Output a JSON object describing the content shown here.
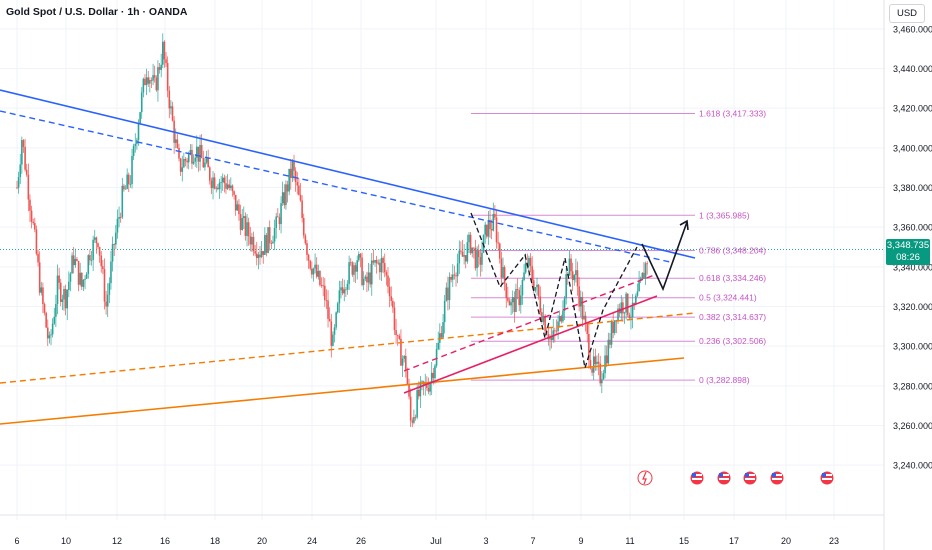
{
  "header": {
    "title": "Gold Spot / U.S. Dollar · 1h · OANDA",
    "currency": "USD",
    "last_price": "3,348.735",
    "countdown": "08:26"
  },
  "colors": {
    "trend_blue": "#2962ff",
    "orange": "#f57c00",
    "pink_red": "#e91e63",
    "magenta": "#c653c6",
    "fib_line": "#d68ad6",
    "candle": "#26a69a",
    "candle_down": "#ef5350",
    "price_tag": "#089981",
    "grid": "#f0f3fa",
    "axis_text": "#131722"
  },
  "icons": [
    "lightning-event-icon",
    "us-flag-event-icon",
    "us-flag-event-icon",
    "us-flag-event-icon",
    "us-flag-event-icon",
    "us-flag-event-icon"
  ],
  "chart_data": {
    "type": "candlestick",
    "symbol": "XAUUSD",
    "timeframe": "1h",
    "ylim": [
      3230,
      3470
    ],
    "y_ticks": [
      3240,
      3260,
      3280,
      3300,
      3320,
      3340,
      3360,
      3380,
      3400,
      3420,
      3440,
      3460
    ],
    "y_tick_labels": [
      "3,240.000",
      "3,260.000",
      "3,280.000",
      "3,300.000",
      "3,320.000",
      "3,340.000",
      "3,360.000",
      "3,380.000",
      "3,400.000",
      "3,420.000",
      "3,440.000",
      "3,460.000"
    ],
    "x_tick_labels": [
      "6",
      "10",
      "12",
      "16",
      "18",
      "20",
      "24",
      "26",
      "Jul",
      "3",
      "7",
      "9",
      "11",
      "15",
      "17",
      "20",
      "23"
    ],
    "price_path": [
      [
        0,
        3380
      ],
      [
        0.3,
        3405
      ],
      [
        1,
        3360
      ],
      [
        1.5,
        3325
      ],
      [
        2,
        3300
      ],
      [
        2.5,
        3330
      ],
      [
        3,
        3325
      ],
      [
        3.5,
        3345
      ],
      [
        4,
        3330
      ],
      [
        4.5,
        3348
      ],
      [
        5,
        3355
      ],
      [
        5.5,
        3320
      ],
      [
        6,
        3352
      ],
      [
        6.5,
        3375
      ],
      [
        7,
        3385
      ],
      [
        7.5,
        3415
      ],
      [
        8,
        3440
      ],
      [
        8.5,
        3430
      ],
      [
        9,
        3450
      ],
      [
        9.5,
        3418
      ],
      [
        10,
        3390
      ],
      [
        11,
        3400
      ],
      [
        12,
        3385
      ],
      [
        13,
        3382
      ],
      [
        14,
        3360
      ],
      [
        15,
        3348
      ],
      [
        16,
        3360
      ],
      [
        17,
        3390
      ],
      [
        17.5,
        3370
      ],
      [
        18,
        3345
      ],
      [
        19,
        3325
      ],
      [
        19.5,
        3300
      ],
      [
        20,
        3330
      ],
      [
        21,
        3345
      ],
      [
        21.5,
        3330
      ],
      [
        22,
        3340
      ],
      [
        22.5,
        3342
      ],
      [
        23,
        3330
      ],
      [
        23.5,
        3300
      ],
      [
        24,
        3290
      ],
      [
        24.3,
        3262
      ],
      [
        24.8,
        3275
      ],
      [
        25.5,
        3283
      ],
      [
        26,
        3300
      ],
      [
        26.5,
        3325
      ],
      [
        27,
        3340
      ],
      [
        27.5,
        3345
      ],
      [
        28,
        3352
      ],
      [
        28.5,
        3340
      ],
      [
        29,
        3360
      ],
      [
        29.5,
        3362
      ],
      [
        30,
        3335
      ],
      [
        30.5,
        3320
      ],
      [
        31,
        3325
      ],
      [
        31.5,
        3342
      ],
      [
        32,
        3330
      ],
      [
        32.5,
        3315
      ],
      [
        33,
        3302
      ],
      [
        33.5,
        3312
      ],
      [
        34,
        3340
      ],
      [
        34.5,
        3335
      ],
      [
        35,
        3312
      ],
      [
        35.5,
        3290
      ],
      [
        36,
        3285
      ],
      [
        36.5,
        3300
      ],
      [
        37,
        3318
      ],
      [
        37.5,
        3322
      ],
      [
        38,
        3316
      ],
      [
        38.5,
        3330
      ],
      [
        39,
        3348
      ]
    ],
    "fibonacci": [
      {
        "level": "1.618",
        "value": 3417.333,
        "label": "1.618 (3,417.333)"
      },
      {
        "level": "1",
        "value": 3365.985,
        "label": "1 (3,365.985)"
      },
      {
        "level": "0.786",
        "value": 3348.204,
        "label": "0.786 (3,348.204)"
      },
      {
        "level": "0.618",
        "value": 3334.246,
        "label": "0.618 (3,334.246)"
      },
      {
        "level": "0.5",
        "value": 3324.441,
        "label": "0.5 (3,324.441)"
      },
      {
        "level": "0.382",
        "value": 3314.637,
        "label": "0.382 (3,314.637)"
      },
      {
        "level": "0.236",
        "value": 3302.506,
        "label": "0.236 (3,302.506)"
      },
      {
        "level": "0",
        "value": 3282.898,
        "label": "0 (3,282.898)"
      }
    ],
    "grid": true
  }
}
